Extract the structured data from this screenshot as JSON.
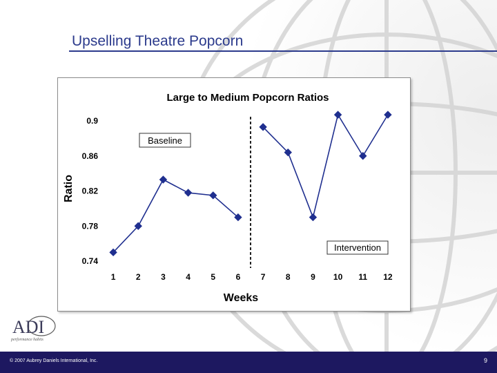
{
  "slide": {
    "title": "Upselling Theatre Popcorn",
    "footer_copyright": "© 2007 Aubrey Daniels International, Inc.",
    "page_number": "9",
    "logo_text": "ADI",
    "logo_tagline": "performance habits"
  },
  "colors": {
    "title": "#2b3a8c",
    "footer": "#1d1860",
    "series": "#1f2f8f"
  },
  "chart_data": {
    "type": "line",
    "title": "Large to Medium Popcorn Ratios",
    "xlabel": "Weeks",
    "ylabel": "Ratio",
    "ylim": [
      0.74,
      0.9
    ],
    "yticks": [
      "0.9",
      "0.86",
      "0.82",
      "0.78",
      "0.74"
    ],
    "ytick_values": [
      0.9,
      0.86,
      0.82,
      0.78,
      0.74
    ],
    "categories": [
      "1",
      "2",
      "3",
      "4",
      "5",
      "6",
      "7",
      "8",
      "9",
      "10",
      "11",
      "12"
    ],
    "series": [
      {
        "name": "",
        "values": [
          0.75,
          0.78,
          0.833,
          0.818,
          0.815,
          0.79,
          0.893,
          0.864,
          0.79,
          0.907,
          0.86,
          0.907
        ]
      }
    ],
    "segments": [
      {
        "label": "Baseline",
        "start": 0,
        "end": 5
      },
      {
        "label": "Intervention",
        "start": 6,
        "end": 11
      }
    ],
    "phase_line_after_index": 5,
    "grid": false
  }
}
